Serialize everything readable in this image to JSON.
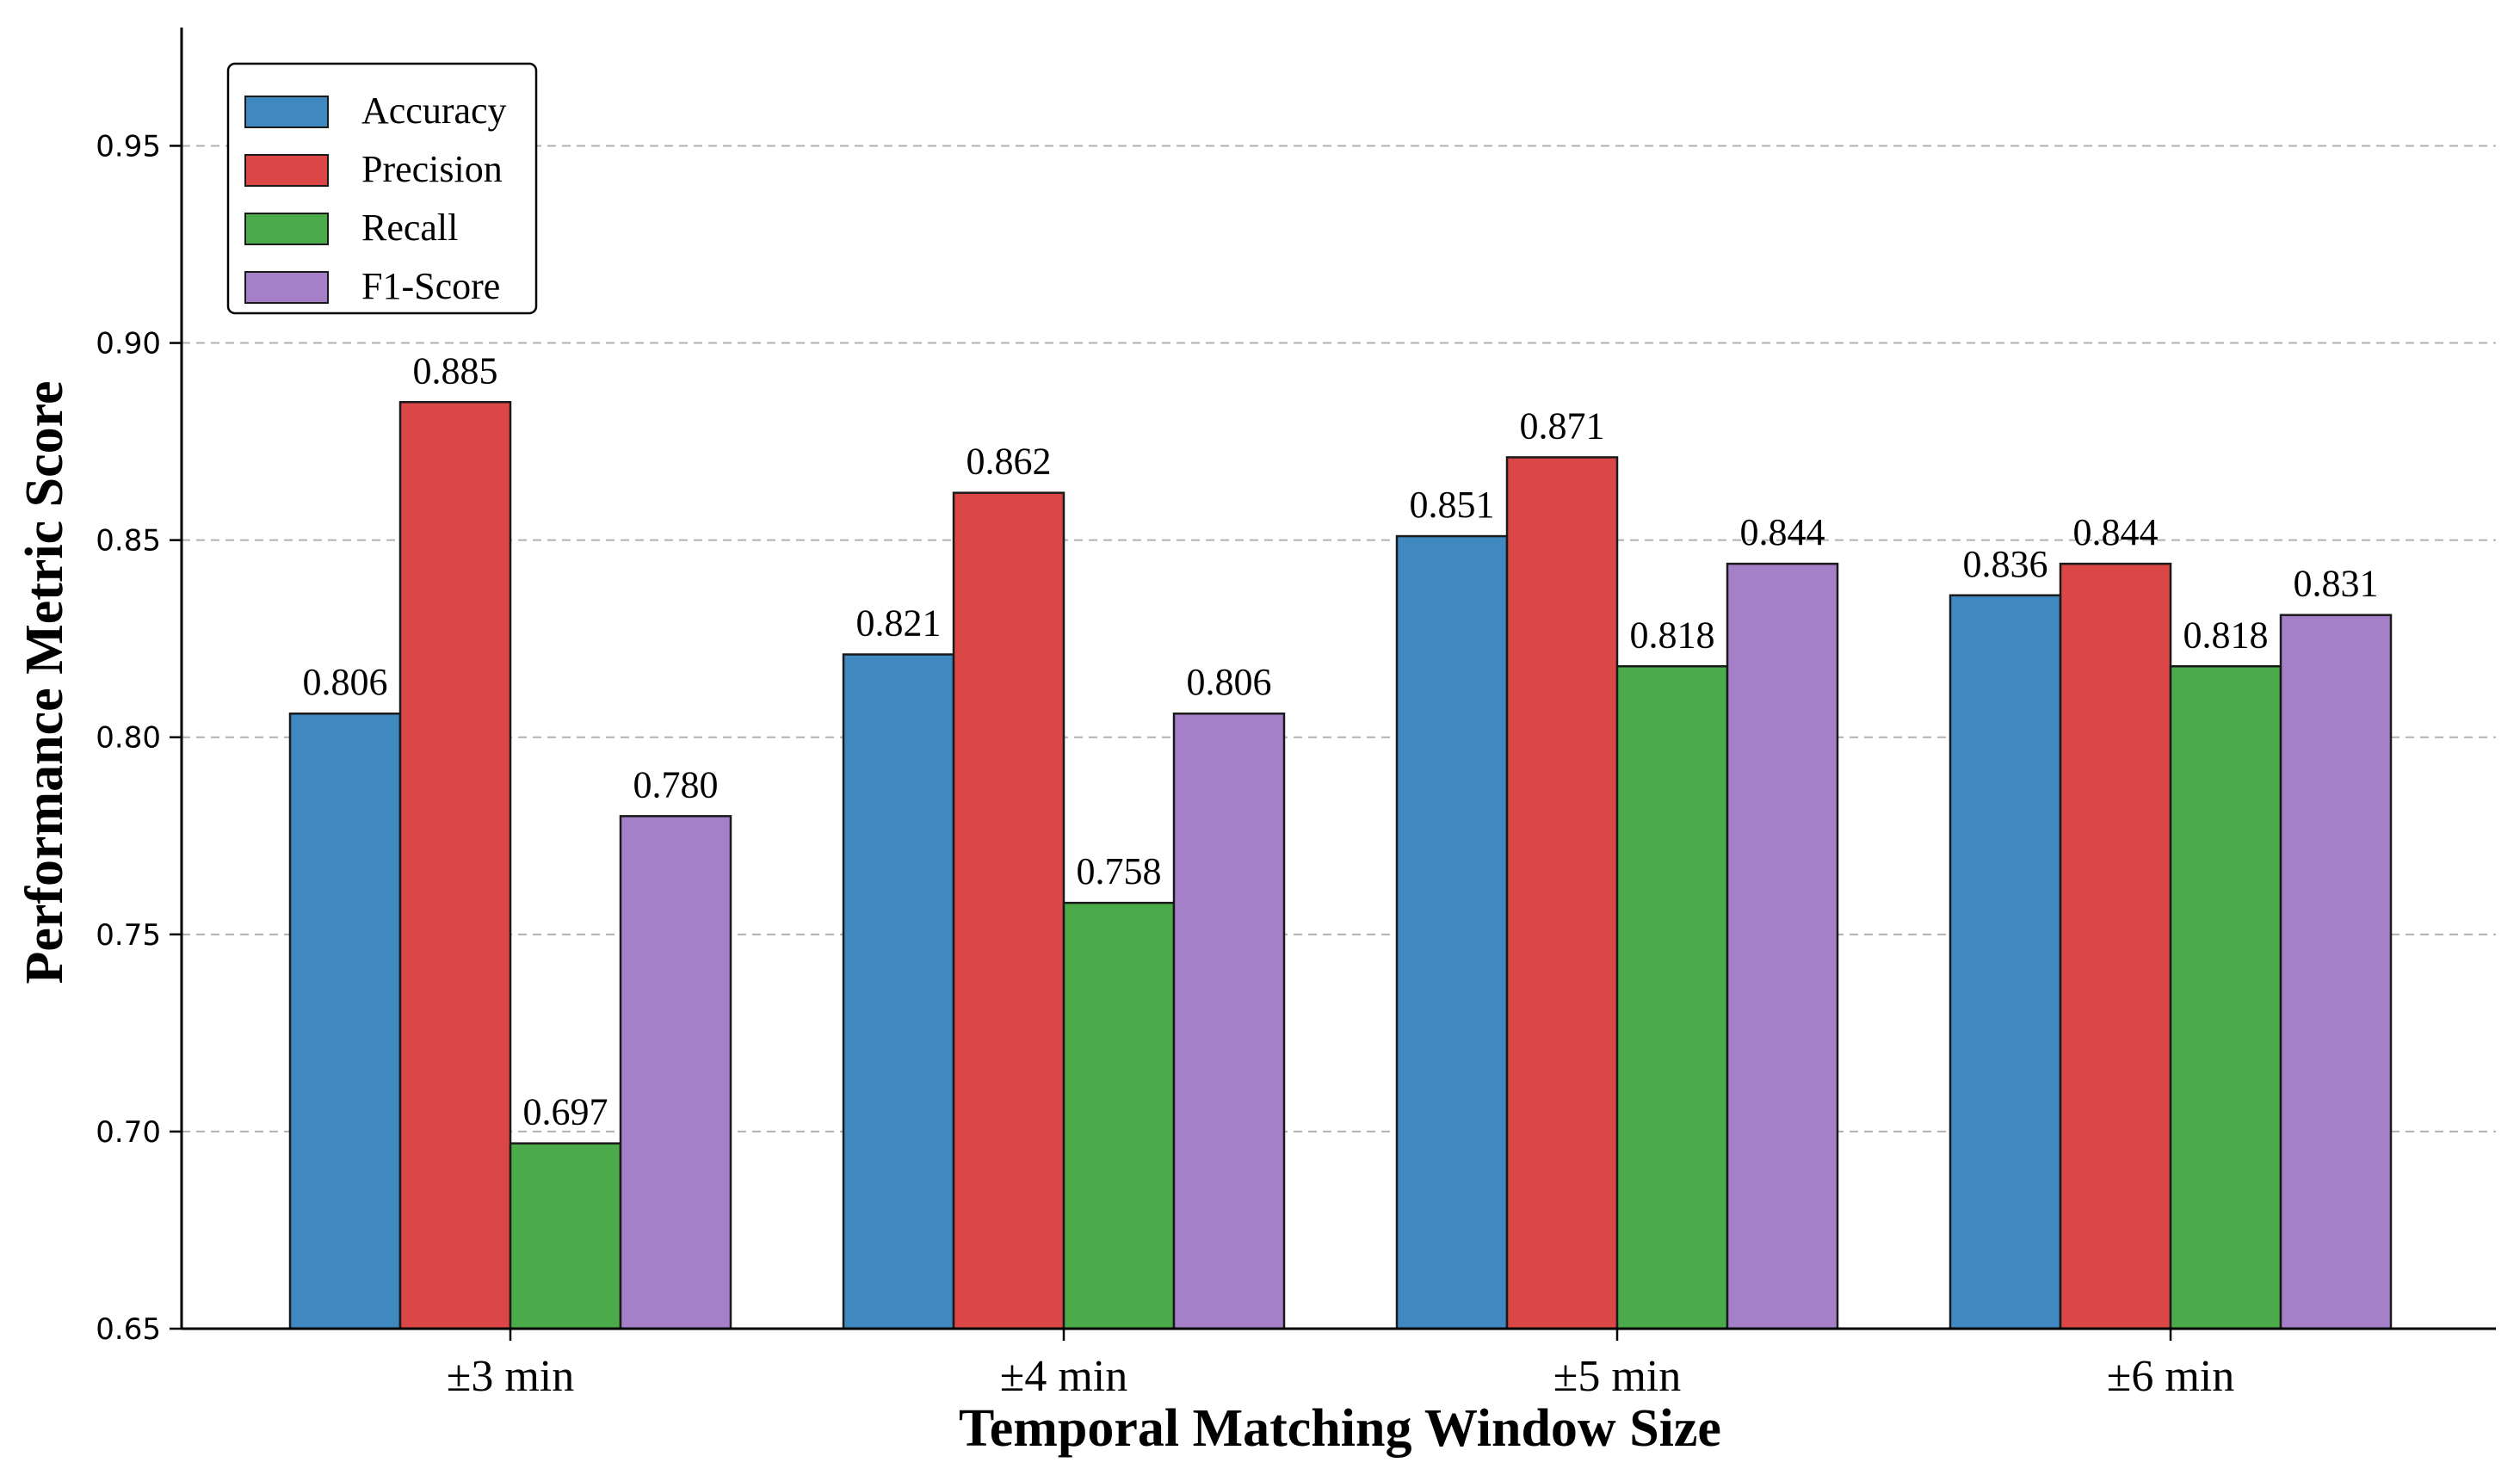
{
  "chart_data": {
    "type": "bar",
    "categories": [
      "±3 min",
      "±4 min",
      "±5 min",
      "±6 min"
    ],
    "series": [
      {
        "name": "Accuracy",
        "color": "#3f88c0",
        "values": [
          0.806,
          0.821,
          0.851,
          0.836
        ],
        "labels": [
          "0.806",
          "0.821",
          "0.851",
          "0.836"
        ]
      },
      {
        "name": "Precision",
        "color": "#db4646",
        "values": [
          0.885,
          0.862,
          0.871,
          0.844
        ],
        "labels": [
          "0.885",
          "0.862",
          "0.871",
          "0.844"
        ]
      },
      {
        "name": "Recall",
        "color": "#4bab4b",
        "values": [
          0.697,
          0.758,
          0.818,
          0.818
        ],
        "labels": [
          "0.697",
          "0.758",
          "0.818",
          "0.818"
        ]
      },
      {
        "name": "F1-Score",
        "color": "#a57fc7",
        "values": [
          0.78,
          0.806,
          0.844,
          0.831
        ],
        "labels": [
          "0.780",
          "0.806",
          "0.844",
          "0.831"
        ]
      }
    ],
    "xlabel": "Temporal Matching Window Size",
    "ylabel": "Performance Metric Score",
    "ylim": [
      0.65,
      0.98
    ],
    "yticks": [
      "0.65",
      "0.70",
      "0.75",
      "0.80",
      "0.85",
      "0.90",
      "0.95"
    ],
    "grid": "y-dashed",
    "legend_position": "top-left"
  }
}
